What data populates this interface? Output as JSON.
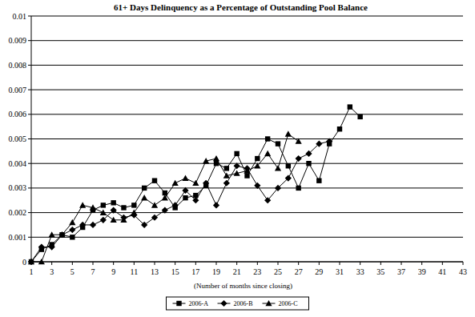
{
  "chart_data": {
    "type": "line",
    "title": "61+ Days Delinquency as a Percentage of Outstanding Pool Balance",
    "x_label": "(Number of months since closing)",
    "x": [
      1,
      2,
      3,
      4,
      5,
      6,
      7,
      8,
      9,
      10,
      11,
      12,
      13,
      14,
      15,
      16,
      17,
      18,
      19,
      20,
      21,
      22,
      23,
      24,
      25,
      26,
      27,
      28,
      29,
      30,
      31,
      32,
      33
    ],
    "series": [
      {
        "name": "2006-A",
        "color": "#000000",
        "marker": "square",
        "values": [
          0,
          0.0005,
          0.0007,
          0.0011,
          0.001,
          0.0014,
          0.0021,
          0.0023,
          0.0024,
          0.0022,
          0.0023,
          0.003,
          0.0033,
          0.0028,
          0.0022,
          0.0026,
          0.0027,
          0.0031,
          0.004,
          0.0038,
          0.0044,
          0.0035,
          0.0042,
          0.005,
          0.0048,
          0.0039,
          0.003,
          0.004,
          0.0033,
          0.0048,
          0.0054,
          0.0063,
          0.0059
        ]
      },
      {
        "name": "2006-B",
        "color": "#000000",
        "marker": "diamond",
        "values": [
          0,
          0.0006,
          0.0006,
          0.0011,
          0.0013,
          0.0015,
          0.0015,
          0.0017,
          0.0021,
          0.0018,
          0.0019,
          0.0015,
          0.0018,
          0.0021,
          0.0023,
          0.0029,
          0.0025,
          0.0032,
          0.0023,
          0.0032,
          0.0039,
          0.0038,
          0.0031,
          0.0025,
          0.003,
          0.0034,
          0.0042,
          0.0044,
          0.0048,
          0.0049,
          null,
          null,
          null
        ]
      },
      {
        "name": "2006-C",
        "color": "#000000",
        "marker": "triangle",
        "values": [
          0,
          0,
          0.0011,
          0.0011,
          0.0016,
          0.0023,
          0.0022,
          0.002,
          0.0017,
          0.0017,
          0.002,
          0.0026,
          0.0023,
          0.0026,
          0.0032,
          0.0034,
          0.0032,
          0.0041,
          0.0042,
          0.0035,
          0.0036,
          0.0037,
          0.0039,
          0.0044,
          0.0038,
          0.0052,
          0.0049,
          null,
          null,
          null,
          null,
          null,
          null
        ]
      }
    ],
    "xlim": [
      1,
      43
    ],
    "xticks": [
      1,
      3,
      5,
      7,
      9,
      11,
      13,
      15,
      17,
      19,
      21,
      23,
      25,
      27,
      29,
      31,
      33,
      35,
      37,
      39,
      41,
      43
    ],
    "ylim": [
      0,
      0.01
    ],
    "yticks": [
      0,
      0.001,
      0.002,
      0.003,
      0.004,
      0.005,
      0.006,
      0.007,
      0.008,
      0.009,
      0.01
    ],
    "grid": true,
    "legend": "bottom"
  }
}
